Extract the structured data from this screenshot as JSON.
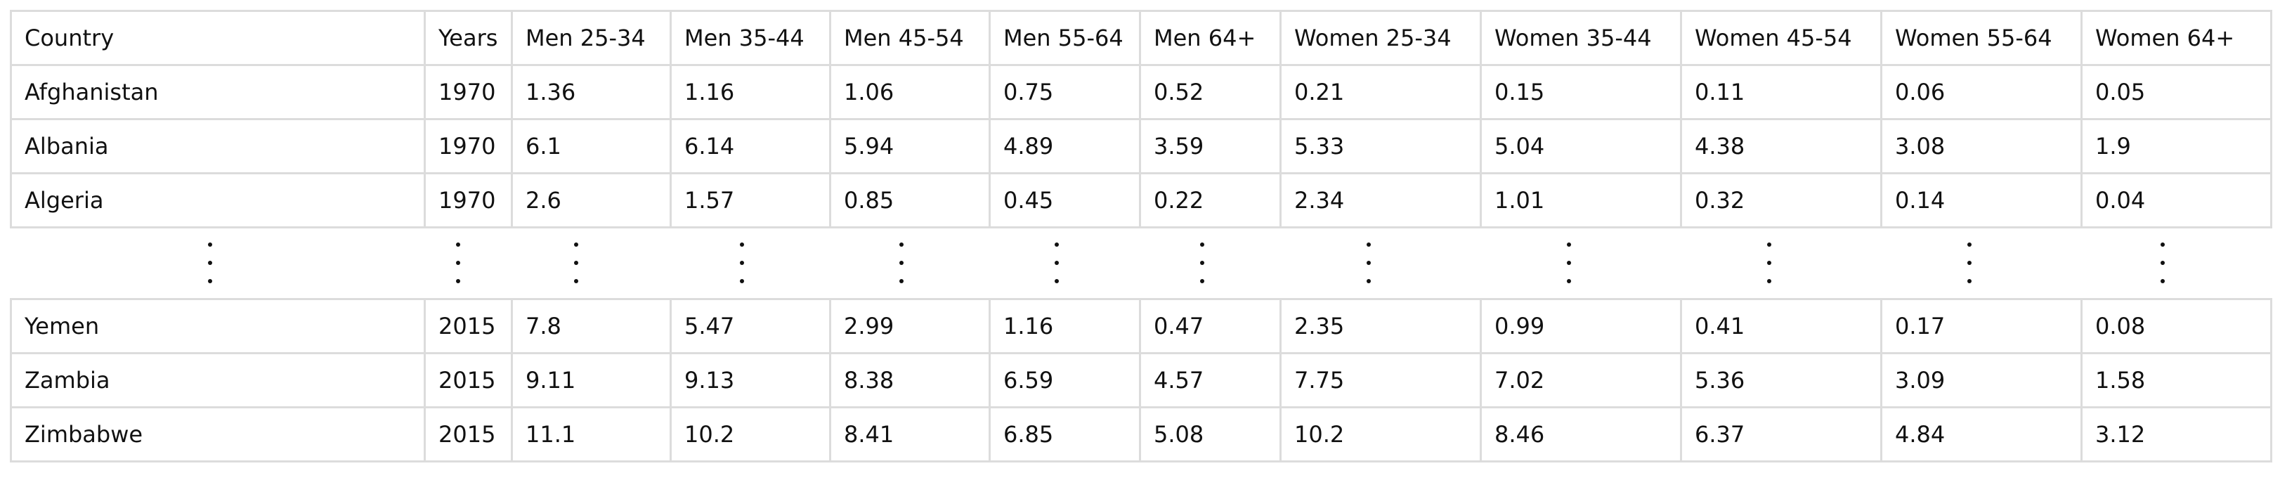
{
  "table": {
    "columns": [
      "Country",
      "Years",
      "Men 25-34",
      "Men 35-44",
      "Men 45-54",
      "Men 55-64",
      "Men 64+",
      "Women 25-34",
      "Women 35-44",
      "Women 45-54",
      "Women 55-64",
      "Women 64+"
    ],
    "top_rows": [
      [
        "Afghanistan",
        "1970",
        "1.36",
        "1.16",
        "1.06",
        "0.75",
        "0.52",
        "0.21",
        "0.15",
        "0.11",
        "0.06",
        "0.05"
      ],
      [
        "Albania",
        "1970",
        "6.1",
        "6.14",
        "5.94",
        "4.89",
        "3.59",
        "5.33",
        "5.04",
        "4.38",
        "3.08",
        "1.9"
      ],
      [
        "Algeria",
        "1970",
        "2.6",
        "1.57",
        "0.85",
        "0.45",
        "0.22",
        "2.34",
        "1.01",
        "0.32",
        "0.14",
        "0.04"
      ]
    ],
    "bottom_rows": [
      [
        "Yemen",
        "2015",
        "7.8",
        "5.47",
        "2.99",
        "1.16",
        "0.47",
        "2.35",
        "0.99",
        "0.41",
        "0.17",
        "0.08"
      ],
      [
        "Zambia",
        "2015",
        "9.11",
        "9.13",
        "8.38",
        "6.59",
        "4.57",
        "7.75",
        "7.02",
        "5.36",
        "3.09",
        "1.58"
      ],
      [
        "Zimbabwe",
        "2015",
        "11.1",
        "10.2",
        "8.41",
        "6.85",
        "5.08",
        "10.2",
        "8.46",
        "6.37",
        "4.84",
        "3.12"
      ]
    ]
  }
}
